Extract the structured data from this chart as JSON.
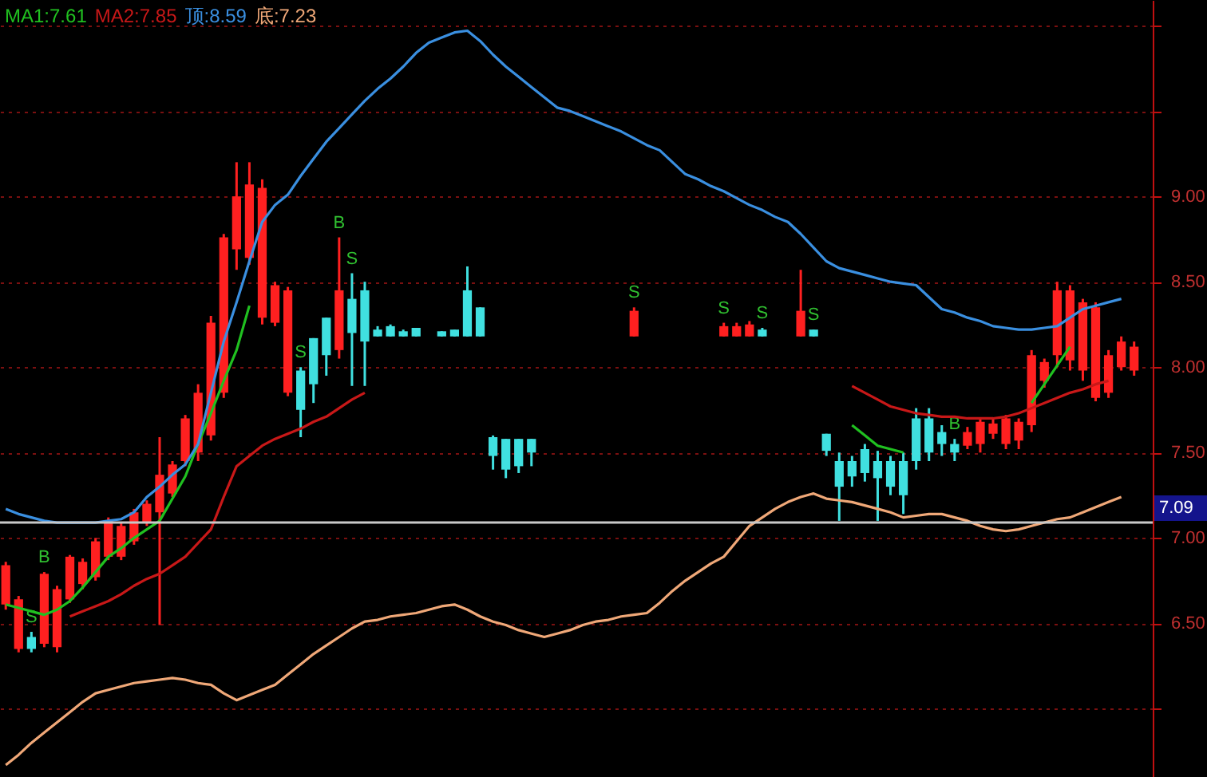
{
  "chart_data": {
    "type": "candlestick",
    "categories": [
      null,
      null,
      null,
      null,
      null,
      null,
      null,
      null,
      null,
      null,
      null,
      null,
      null,
      null,
      null,
      null,
      null,
      null,
      null,
      null,
      null,
      null,
      null,
      null,
      null,
      null,
      null,
      null,
      null,
      null,
      null,
      null,
      null,
      null,
      null,
      null,
      null,
      null,
      null,
      null,
      null,
      null,
      null,
      null,
      null,
      null,
      null,
      null,
      null,
      null,
      null,
      null,
      null,
      null,
      null,
      null,
      null,
      null,
      null,
      null,
      null,
      null,
      null,
      null,
      null,
      null,
      null,
      null,
      null,
      null,
      null,
      null,
      null,
      null,
      null,
      null,
      null,
      null,
      null,
      null,
      null,
      null,
      null,
      null,
      null,
      null,
      null,
      null,
      null,
      null
    ],
    "ohlc": [
      [
        6.61,
        6.86,
        6.58,
        6.84
      ],
      [
        6.35,
        6.66,
        6.33,
        6.64
      ],
      [
        6.42,
        6.45,
        6.33,
        6.35
      ],
      [
        6.38,
        6.8,
        6.36,
        6.79
      ],
      [
        6.36,
        6.72,
        6.33,
        6.7
      ],
      [
        6.64,
        6.9,
        6.62,
        6.89
      ],
      [
        6.73,
        6.88,
        6.7,
        6.86
      ],
      [
        6.77,
        7.0,
        6.75,
        6.98
      ],
      [
        6.89,
        7.12,
        6.87,
        7.1
      ],
      [
        6.89,
        7.09,
        6.87,
        7.07
      ],
      [
        6.98,
        7.17,
        6.96,
        7.15
      ],
      [
        7.09,
        7.22,
        7.07,
        7.2
      ],
      [
        7.15,
        7.59,
        6.49,
        7.37
      ],
      [
        7.26,
        7.45,
        7.24,
        7.43
      ],
      [
        7.45,
        7.72,
        7.42,
        7.7
      ],
      [
        7.5,
        7.9,
        7.45,
        7.85
      ],
      [
        7.6,
        8.3,
        7.57,
        8.26
      ],
      [
        7.85,
        8.78,
        7.82,
        8.76
      ],
      [
        8.69,
        9.2,
        8.57,
        9.0
      ],
      [
        8.64,
        9.2,
        8.6,
        9.07
      ],
      [
        8.29,
        9.1,
        8.25,
        9.05
      ],
      [
        8.26,
        8.5,
        8.24,
        8.48
      ],
      [
        7.85,
        8.47,
        7.83,
        8.45
      ],
      [
        7.98,
        8.0,
        7.59,
        7.75
      ],
      [
        8.17,
        8.17,
        7.79,
        7.9
      ],
      [
        8.29,
        8.29,
        7.95,
        8.07
      ],
      [
        8.1,
        8.76,
        8.05,
        8.45
      ],
      [
        8.4,
        8.55,
        7.89,
        8.2
      ],
      [
        8.45,
        8.5,
        7.89,
        8.15
      ],
      [
        8.22,
        8.24,
        8.18,
        8.18
      ],
      [
        8.24,
        8.25,
        8.18,
        8.18
      ],
      [
        8.21,
        8.22,
        8.18,
        8.18
      ],
      [
        8.23,
        8.23,
        8.18,
        8.18
      ],
      null,
      [
        8.21,
        8.21,
        8.18,
        8.18
      ],
      [
        8.22,
        8.22,
        8.18,
        8.18
      ],
      [
        8.45,
        8.59,
        8.18,
        8.18
      ],
      [
        8.35,
        8.35,
        8.18,
        8.18
      ],
      [
        7.59,
        7.6,
        7.4,
        7.48
      ],
      [
        7.58,
        7.58,
        7.35,
        7.4
      ],
      [
        7.58,
        7.58,
        7.38,
        7.42
      ],
      [
        7.58,
        7.58,
        7.42,
        7.5
      ],
      null,
      null,
      null,
      null,
      null,
      null,
      null,
      [
        8.18,
        8.35,
        8.18,
        8.33
      ],
      null,
      null,
      null,
      null,
      null,
      null,
      [
        8.18,
        8.26,
        8.18,
        8.24
      ],
      [
        8.18,
        8.26,
        8.18,
        8.24
      ],
      [
        8.18,
        8.27,
        8.18,
        8.25
      ],
      [
        8.22,
        8.23,
        8.18,
        8.18
      ],
      null,
      null,
      [
        8.18,
        8.57,
        8.18,
        8.33
      ],
      [
        8.22,
        8.22,
        8.18,
        8.18
      ],
      [
        7.61,
        7.61,
        7.48,
        7.51
      ],
      [
        7.45,
        7.5,
        7.1,
        7.3
      ],
      [
        7.45,
        7.48,
        7.3,
        7.36
      ],
      [
        7.52,
        7.55,
        7.33,
        7.38
      ],
      [
        7.45,
        7.51,
        7.1,
        7.35
      ],
      [
        7.45,
        7.48,
        7.25,
        7.3
      ],
      [
        7.45,
        7.5,
        7.14,
        7.25
      ],
      [
        7.7,
        7.76,
        7.4,
        7.45
      ],
      [
        7.7,
        7.76,
        7.45,
        7.5
      ],
      [
        7.62,
        7.66,
        7.48,
        7.55
      ],
      [
        7.55,
        7.58,
        7.45,
        7.5
      ],
      [
        7.54,
        7.65,
        7.52,
        7.62
      ],
      [
        7.55,
        7.7,
        7.5,
        7.68
      ],
      [
        7.61,
        7.7,
        7.58,
        7.67
      ],
      [
        7.55,
        7.72,
        7.52,
        7.7
      ],
      [
        7.57,
        7.7,
        7.52,
        7.68
      ],
      [
        7.66,
        8.1,
        7.62,
        8.07
      ],
      [
        7.92,
        8.05,
        7.88,
        8.03
      ],
      [
        8.07,
        8.5,
        8.0,
        8.45
      ],
      [
        8.04,
        8.48,
        7.98,
        8.45
      ],
      [
        7.98,
        8.4,
        7.92,
        8.38
      ],
      [
        7.82,
        8.38,
        7.8,
        8.35
      ],
      [
        7.85,
        8.1,
        7.82,
        8.07
      ],
      [
        8.0,
        8.18,
        7.98,
        8.15
      ],
      [
        7.98,
        8.15,
        7.95,
        8.12
      ],
      null
    ],
    "colors": [
      "#ff2020",
      "#ff2020",
      "#40e0e0",
      "#ff2020",
      "#ff2020",
      "#ff2020",
      "#ff2020",
      "#ff2020",
      "#ff2020",
      "#ff2020",
      "#ff2020",
      "#ff2020",
      "#ff2020",
      "#ff2020",
      "#ff2020",
      "#ff2020",
      "#ff2020",
      "#ff2020",
      "#ff2020",
      "#ff2020",
      "#ff2020",
      "#ff2020",
      "#ff2020",
      "#40e0e0",
      "#40e0e0",
      "#40e0e0",
      "#ff2020",
      "#40e0e0",
      "#40e0e0",
      "#40e0e0",
      "#40e0e0",
      "#40e0e0",
      "#40e0e0",
      null,
      "#40e0e0",
      "#40e0e0",
      "#40e0e0",
      "#40e0e0",
      "#40e0e0",
      "#40e0e0",
      "#40e0e0",
      "#40e0e0",
      null,
      null,
      null,
      null,
      null,
      null,
      null,
      "#ff2020",
      null,
      null,
      null,
      null,
      null,
      null,
      "#ff2020",
      "#ff2020",
      "#ff2020",
      "#40e0e0",
      null,
      null,
      "#ff2020",
      "#40e0e0",
      "#40e0e0",
      "#40e0e0",
      "#40e0e0",
      "#40e0e0",
      "#40e0e0",
      "#40e0e0",
      "#40e0e0",
      "#40e0e0",
      "#40e0e0",
      "#40e0e0",
      "#40e0e0",
      "#ff2020",
      "#ff2020",
      "#ff2020",
      "#ff2020",
      "#ff2020",
      "#ff2020",
      "#ff2020",
      "#ff2020",
      "#ff2020",
      "#ff2020",
      "#ff2020",
      "#ff2020",
      "#ff2020",
      "#ff2020",
      null
    ],
    "value_labels": [
      null,
      null,
      "S",
      "B",
      null,
      null,
      null,
      null,
      null,
      null,
      null,
      null,
      null,
      null,
      null,
      null,
      null,
      null,
      null,
      null,
      null,
      null,
      null,
      "S",
      null,
      null,
      "B",
      "S",
      null,
      null,
      null,
      null,
      null,
      null,
      null,
      null,
      null,
      null,
      null,
      null,
      null,
      null,
      null,
      null,
      null,
      null,
      null,
      null,
      null,
      "S",
      null,
      null,
      null,
      null,
      null,
      null,
      "S",
      null,
      null,
      "S",
      null,
      null,
      null,
      "S",
      null,
      null,
      null,
      null,
      null,
      null,
      null,
      null,
      null,
      null,
      "B",
      null,
      null,
      null,
      null,
      null,
      null,
      null,
      null,
      null,
      null,
      null,
      null,
      null,
      null,
      null
    ],
    "series": [
      {
        "name": "MA1:7.61",
        "type": "line",
        "color": "#20c020",
        "values": [
          6.61,
          6.59,
          6.57,
          6.55,
          6.58,
          6.63,
          6.71,
          6.8,
          6.89,
          6.94,
          7.0,
          7.05,
          7.1,
          7.23,
          7.36,
          7.55,
          7.73,
          7.92,
          8.1,
          8.36,
          null,
          null,
          null,
          null,
          null,
          null,
          null,
          null,
          null,
          null,
          null,
          null,
          null,
          null,
          null,
          null,
          null,
          null,
          null,
          null,
          null,
          null,
          null,
          null,
          null,
          null,
          null,
          null,
          null,
          null,
          null,
          null,
          null,
          null,
          null,
          null,
          null,
          null,
          null,
          null,
          null,
          null,
          null,
          null,
          null,
          null,
          7.66,
          7.6,
          7.54,
          7.52,
          7.5,
          null,
          null,
          null,
          null,
          null,
          null,
          null,
          null,
          null,
          7.79,
          7.9,
          8.01,
          8.12,
          null,
          null,
          null,
          null,
          null,
          null
        ]
      },
      {
        "name": "MA2:7.85",
        "type": "line",
        "color": "#c81818",
        "values": [
          null,
          null,
          null,
          null,
          null,
          6.54,
          6.57,
          6.6,
          6.63,
          6.67,
          6.72,
          6.76,
          6.79,
          6.84,
          6.89,
          6.97,
          7.05,
          7.24,
          7.42,
          7.48,
          7.54,
          7.58,
          7.61,
          7.64,
          7.68,
          7.71,
          7.76,
          7.81,
          7.85,
          null,
          null,
          null,
          null,
          null,
          null,
          null,
          null,
          null,
          null,
          null,
          null,
          null,
          null,
          null,
          null,
          null,
          null,
          null,
          null,
          null,
          null,
          null,
          null,
          null,
          null,
          null,
          null,
          null,
          null,
          null,
          null,
          null,
          null,
          null,
          null,
          null,
          7.89,
          7.85,
          7.81,
          7.77,
          7.75,
          7.73,
          7.72,
          7.71,
          7.71,
          7.7,
          7.7,
          7.7,
          7.71,
          7.73,
          7.76,
          7.79,
          7.82,
          7.85,
          7.87,
          7.9,
          7.92,
          null,
          null,
          null
        ]
      },
      {
        "name": "顶:8.59",
        "type": "line",
        "color": "#3a8fe0",
        "values": [
          7.17,
          7.14,
          7.12,
          7.1,
          7.09,
          7.09,
          7.09,
          7.09,
          7.1,
          7.11,
          7.15,
          7.24,
          7.3,
          7.37,
          7.43,
          7.55,
          7.85,
          8.15,
          8.38,
          8.62,
          8.85,
          8.95,
          9.01,
          9.12,
          9.22,
          9.32,
          9.4,
          9.48,
          9.56,
          9.63,
          9.69,
          9.76,
          9.84,
          9.9,
          9.93,
          9.96,
          9.97,
          9.91,
          9.83,
          9.76,
          9.7,
          9.64,
          9.58,
          9.52,
          9.5,
          9.47,
          9.44,
          9.41,
          9.38,
          9.34,
          9.3,
          9.27,
          9.2,
          9.13,
          9.1,
          9.06,
          9.03,
          8.99,
          8.95,
          8.92,
          8.88,
          8.85,
          8.78,
          8.7,
          8.62,
          8.58,
          8.56,
          8.54,
          8.52,
          8.5,
          8.49,
          8.48,
          8.41,
          8.34,
          8.32,
          8.29,
          8.27,
          8.24,
          8.23,
          8.22,
          8.22,
          8.23,
          8.24,
          8.29,
          8.34,
          8.36,
          8.38,
          8.4,
          null,
          null
        ]
      },
      {
        "name": "底:7.23",
        "type": "line",
        "color": "#f0a878",
        "values": [
          5.67,
          5.73,
          5.8,
          5.86,
          5.92,
          5.98,
          6.04,
          6.09,
          6.11,
          6.13,
          6.15,
          6.16,
          6.17,
          6.18,
          6.17,
          6.15,
          6.14,
          6.09,
          6.05,
          6.08,
          6.11,
          6.14,
          6.2,
          6.26,
          6.32,
          6.37,
          6.42,
          6.47,
          6.51,
          6.52,
          6.54,
          6.55,
          6.56,
          6.58,
          6.6,
          6.61,
          6.58,
          6.54,
          6.51,
          6.49,
          6.46,
          6.44,
          6.42,
          6.44,
          6.46,
          6.49,
          6.51,
          6.52,
          6.54,
          6.55,
          6.56,
          6.62,
          6.69,
          6.75,
          6.8,
          6.85,
          6.89,
          6.98,
          7.07,
          7.12,
          7.17,
          7.21,
          7.24,
          7.26,
          7.23,
          7.22,
          7.21,
          7.19,
          7.17,
          7.15,
          7.12,
          7.13,
          7.14,
          7.14,
          7.12,
          7.1,
          7.07,
          7.05,
          7.04,
          7.05,
          7.07,
          7.09,
          7.11,
          7.12,
          7.15,
          7.18,
          7.21,
          7.24,
          null,
          null
        ]
      }
    ],
    "ylim": [
      5.6,
      10.15
    ],
    "yticks": [
      {
        "value": 6,
        "label": null
      },
      {
        "value": 6.5,
        "label": "6.50"
      },
      {
        "value": 7,
        "label": "7.00"
      },
      {
        "value": 7.5,
        "label": "7.50"
      },
      {
        "value": 8,
        "label": "8.00"
      },
      {
        "value": 8.5,
        "label": "8.50"
      },
      {
        "value": 9,
        "label": "9.00"
      },
      {
        "value": 9.5,
        "label": null
      },
      {
        "value": 10,
        "label": null
      }
    ],
    "grid": "y",
    "legend": "top left",
    "ref_lines": [
      {
        "axis": "y",
        "value": 7.09,
        "label": "7.09",
        "color": "#c8c8c8"
      }
    ]
  }
}
